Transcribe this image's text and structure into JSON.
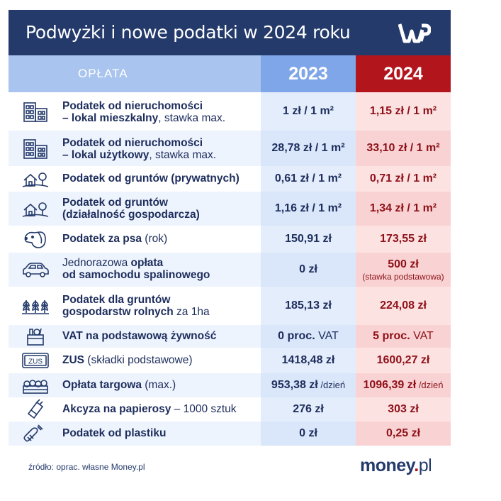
{
  "header": {
    "title": "Podwyżki i nowe podatki w 2024 roku",
    "logo_text": "WP"
  },
  "columns": {
    "label": "OPŁATA",
    "y2023": "2023",
    "y2024": "2024"
  },
  "rows": [
    {
      "name_bold": "Podatek od nieruchomości",
      "name_line2_bold": "– lokal mieszkalny",
      "name_line2_rest": ", stawka max.",
      "v2023": "1 zł / 1 m²",
      "v2024": "1,15 zł / 1 m²",
      "icon": "apartment-building-icon"
    },
    {
      "name_bold": "Podatek od nieruchomości",
      "name_line2_bold": "– lokal użytkowy",
      "name_line2_rest": ", stawka max.",
      "v2023": "28,78 zł / 1 m²",
      "v2024": "33,10 zł / 1 m²",
      "icon": "office-building-icon"
    },
    {
      "name_bold": "Podatek od gruntów (prywatnych)",
      "v2023": "0,61 zł / 1 m²",
      "v2024": "0,71 zł / 1 m²",
      "icon": "house-tree-icon"
    },
    {
      "name_bold": "Podatek od gruntów",
      "name_line2_bold": "(działalność gospodarcza)",
      "v2023": "1,16 zł / 1 m²",
      "v2024": "1,34 zł / 1 m²",
      "icon": "house-tree-business-icon"
    },
    {
      "name_bold": "Podatek za psa",
      "name_rest": " (rok)",
      "v2023": "150,91 zł",
      "v2024": "173,55 zł",
      "icon": "dog-icon"
    },
    {
      "name_pre": "Jednorazowa ",
      "name_bold": "opłata",
      "name_line2_bold": "od samochodu spalinowego",
      "v2023": "0 zł",
      "v2024": "500 zł",
      "v2024_note": "(stawka podstawowa)",
      "icon": "car-icon"
    },
    {
      "name_bold": "Podatek dla gruntów",
      "name_line2_bold": "gospodarstw rolnych",
      "name_line2_rest": " za 1ha",
      "v2023": "185,13 zł",
      "v2024": "224,08 zł",
      "icon": "crops-icon"
    },
    {
      "name_bold": "VAT na podstawową żywność",
      "v2023_bold": "0 proc.",
      "v2023_rest": " VAT",
      "v2024_bold": "5 proc.",
      "v2024_rest": " VAT",
      "icon": "grocery-basket-icon"
    },
    {
      "name_bold": "ZUS",
      "name_rest": " (składki podstawowe)",
      "v2023": "1418,48 zł",
      "v2024": "1600,27 zł",
      "icon": "zus-card-icon"
    },
    {
      "name_bold": "Opłata targowa",
      "name_rest": " (max.)",
      "v2023_bold": "953,38 zł",
      "v2023_rest": " /dzień",
      "v2024_bold": "1096,39 zł",
      "v2024_rest": " /dzień",
      "icon": "market-crate-icon"
    },
    {
      "name_bold": "Akcyza na papierosy",
      "name_rest": " – 1000 sztuk",
      "v2023": "276 zł",
      "v2024": "303 zł",
      "icon": "cigarette-pack-icon"
    },
    {
      "name_bold": "Podatek od plastiku",
      "v2023": "0 zł",
      "v2024": "0,25 zł",
      "icon": "plastic-bottle-icon"
    }
  ],
  "footer": {
    "source": "źródło: oprac. własne Money.pl",
    "brand_main": "money",
    "brand_dot": ".",
    "brand_pl": "pl"
  },
  "colors": {
    "navy": "#243a6b",
    "red": "#b3151d",
    "blue_head": "#7fa6e8",
    "label_head": "#a9c4ee"
  }
}
